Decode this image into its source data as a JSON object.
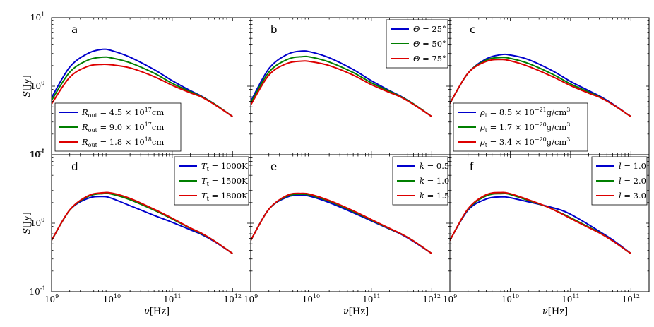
{
  "figure": {
    "ylabel_main": "S",
    "ylabel_unit": "[Jy]",
    "xlabel_main": "ν",
    "xlabel_unit": "[Hz]"
  },
  "axes": {
    "x_ticks": [
      {
        "base": "10",
        "exp": "9"
      },
      {
        "base": "10",
        "exp": "10"
      },
      {
        "base": "10",
        "exp": "11"
      },
      {
        "base": "10",
        "exp": "12"
      }
    ],
    "y_ticks": [
      {
        "base": "10",
        "exp": "-1"
      },
      {
        "base": "10",
        "exp": "0"
      },
      {
        "base": "10",
        "exp": "1"
      }
    ]
  },
  "colors": {
    "blue": "#0000cc",
    "green": "#007f00",
    "red": "#dd0000"
  },
  "chart_data": [
    {
      "type": "line",
      "panel": "a",
      "xscale": "log",
      "yscale": "log",
      "xlim": [
        1000000000.0,
        2000000000000.0
      ],
      "ylim": [
        0.1,
        10
      ],
      "legend_loc": "lower-left",
      "series": [
        {
          "name": "R_out = 4.5 × 10^17 cm",
          "label_sym": "R",
          "label_sub": "out",
          "label_rest": " = 4.5 × 10",
          "label_sup": "17",
          "label_unit": "cm",
          "color": "#0000cc",
          "x": [
            1000000000.0,
            2000000000.0,
            4000000000.0,
            7000000000.0,
            10000000000.0,
            20000000000.0,
            50000000000.0,
            100000000000.0,
            200000000000.0,
            300000000000.0,
            500000000000.0,
            1000000000000.0
          ],
          "y": [
            0.68,
            1.9,
            3.0,
            3.45,
            3.3,
            2.65,
            1.75,
            1.2,
            0.86,
            0.72,
            0.55,
            0.36
          ]
        },
        {
          "name": "R_out = 9.0 × 10^17 cm",
          "label_sym": "R",
          "label_sub": "out",
          "label_rest": " = 9.0 × 10",
          "label_sup": "17",
          "label_unit": "cm",
          "color": "#007f00",
          "x": [
            1000000000.0,
            2000000000.0,
            4000000000.0,
            7000000000.0,
            10000000000.0,
            20000000000.0,
            50000000000.0,
            100000000000.0,
            200000000000.0,
            300000000000.0,
            500000000000.0,
            1000000000000.0
          ],
          "y": [
            0.62,
            1.6,
            2.4,
            2.65,
            2.58,
            2.2,
            1.55,
            1.1,
            0.83,
            0.71,
            0.55,
            0.36
          ]
        },
        {
          "name": "R_out = 1.8 × 10^18 cm",
          "label_sym": "R",
          "label_sub": "out",
          "label_rest": " = 1.8 × 10",
          "label_sup": "18",
          "label_unit": "cm",
          "color": "#dd0000",
          "x": [
            1000000000.0,
            2000000000.0,
            4000000000.0,
            7000000000.0,
            10000000000.0,
            20000000000.0,
            50000000000.0,
            100000000000.0,
            200000000000.0,
            300000000000.0,
            500000000000.0,
            1000000000000.0
          ],
          "y": [
            0.55,
            1.35,
            1.95,
            2.08,
            2.05,
            1.85,
            1.38,
            1.03,
            0.8,
            0.7,
            0.54,
            0.36
          ]
        }
      ]
    },
    {
      "type": "line",
      "panel": "b",
      "xscale": "log",
      "yscale": "log",
      "xlim": [
        1000000000.0,
        2000000000000.0
      ],
      "ylim": [
        0.1,
        10
      ],
      "legend_loc": "upper-right",
      "series": [
        {
          "name": "Θ = 25°",
          "label_sym": "Θ",
          "label_rest": " = 25°",
          "color": "#0000cc",
          "x": [
            1000000000.0,
            2000000000.0,
            4000000000.0,
            7000000000.0,
            10000000000.0,
            20000000000.0,
            50000000000.0,
            100000000000.0,
            200000000000.0,
            300000000000.0,
            500000000000.0,
            1000000000000.0
          ],
          "y": [
            0.6,
            1.8,
            2.9,
            3.25,
            3.15,
            2.6,
            1.75,
            1.2,
            0.86,
            0.72,
            0.55,
            0.36
          ]
        },
        {
          "name": "Θ = 50°",
          "label_sym": "Θ",
          "label_rest": " = 50°",
          "color": "#007f00",
          "x": [
            1000000000.0,
            2000000000.0,
            4000000000.0,
            7000000000.0,
            10000000000.0,
            20000000000.0,
            50000000000.0,
            100000000000.0,
            200000000000.0,
            300000000000.0,
            500000000000.0,
            1000000000000.0
          ],
          "y": [
            0.57,
            1.6,
            2.45,
            2.7,
            2.65,
            2.25,
            1.58,
            1.12,
            0.84,
            0.71,
            0.55,
            0.36
          ]
        },
        {
          "name": "Θ = 75°",
          "label_sym": "Θ",
          "label_rest": " = 75°",
          "color": "#dd0000",
          "x": [
            1000000000.0,
            2000000000.0,
            4000000000.0,
            7000000000.0,
            10000000000.0,
            20000000000.0,
            50000000000.0,
            100000000000.0,
            200000000000.0,
            300000000000.0,
            500000000000.0,
            1000000000000.0
          ],
          "y": [
            0.53,
            1.45,
            2.15,
            2.32,
            2.28,
            2.0,
            1.45,
            1.05,
            0.81,
            0.7,
            0.54,
            0.36
          ]
        }
      ]
    },
    {
      "type": "line",
      "panel": "c",
      "xscale": "log",
      "yscale": "log",
      "xlim": [
        1000000000.0,
        2000000000000.0
      ],
      "ylim": [
        0.1,
        10
      ],
      "legend_loc": "lower-left",
      "series": [
        {
          "name": "ρ_t = 8.5 × 10^-21 g/cm^3",
          "label_sym": "ρ",
          "label_sub": "t",
          "label_rest": " = 8.5 × 10",
          "label_sup": "−21",
          "label_unit": "g/cm",
          "label_sup2": "3",
          "color": "#0000cc",
          "x": [
            1000000000.0,
            2000000000.0,
            4000000000.0,
            7000000000.0,
            10000000000.0,
            20000000000.0,
            50000000000.0,
            100000000000.0,
            200000000000.0,
            300000000000.0,
            500000000000.0,
            1000000000000.0
          ],
          "y": [
            0.56,
            1.55,
            2.5,
            2.88,
            2.85,
            2.45,
            1.68,
            1.17,
            0.86,
            0.72,
            0.55,
            0.36
          ]
        },
        {
          "name": "ρ_t = 1.7 × 10^-20 g/cm^3",
          "label_sym": "ρ",
          "label_sub": "t",
          "label_rest": " = 1.7 × 10",
          "label_sup": "−20",
          "label_unit": "g/cm",
          "label_sup2": "3",
          "color": "#007f00",
          "x": [
            1000000000.0,
            2000000000.0,
            4000000000.0,
            7000000000.0,
            10000000000.0,
            20000000000.0,
            50000000000.0,
            100000000000.0,
            200000000000.0,
            300000000000.0,
            500000000000.0,
            1000000000000.0
          ],
          "y": [
            0.56,
            1.55,
            2.4,
            2.62,
            2.55,
            2.15,
            1.5,
            1.08,
            0.82,
            0.7,
            0.54,
            0.36
          ]
        },
        {
          "name": "ρ_t = 3.4 × 10^-20 g/cm^3",
          "label_sym": "ρ",
          "label_sub": "t",
          "label_rest": " = 3.4 × 10",
          "label_sup": "−20",
          "label_unit": "g/cm",
          "label_sup2": "3",
          "color": "#dd0000",
          "x": [
            1000000000.0,
            2000000000.0,
            4000000000.0,
            7000000000.0,
            10000000000.0,
            20000000000.0,
            50000000000.0,
            100000000000.0,
            200000000000.0,
            300000000000.0,
            500000000000.0,
            1000000000000.0
          ],
          "y": [
            0.56,
            1.55,
            2.3,
            2.45,
            2.35,
            1.95,
            1.38,
            1.02,
            0.79,
            0.69,
            0.54,
            0.36
          ]
        }
      ]
    },
    {
      "type": "line",
      "panel": "d",
      "xscale": "log",
      "yscale": "log",
      "xlim": [
        1000000000.0,
        2000000000000.0
      ],
      "ylim": [
        0.1,
        10
      ],
      "legend_loc": "upper-right",
      "series": [
        {
          "name": "T_t = 1000K",
          "label_sym": "T",
          "label_sub": "t",
          "label_rest": " = 1000K",
          "color": "#0000cc",
          "x": [
            1000000000.0,
            2000000000.0,
            4000000000.0,
            7000000000.0,
            10000000000.0,
            20000000000.0,
            50000000000.0,
            100000000000.0,
            200000000000.0,
            300000000000.0,
            500000000000.0,
            1000000000000.0
          ],
          "y": [
            0.56,
            1.55,
            2.3,
            2.45,
            2.3,
            1.8,
            1.3,
            1.03,
            0.8,
            0.69,
            0.54,
            0.36
          ]
        },
        {
          "name": "T_t = 1500K",
          "label_sym": "T",
          "label_sub": "t",
          "label_rest": " = 1500K",
          "color": "#007f00",
          "x": [
            1000000000.0,
            2000000000.0,
            4000000000.0,
            7000000000.0,
            10000000000.0,
            20000000000.0,
            50000000000.0,
            100000000000.0,
            200000000000.0,
            300000000000.0,
            500000000000.0,
            1000000000000.0
          ],
          "y": [
            0.56,
            1.55,
            2.45,
            2.7,
            2.65,
            2.2,
            1.55,
            1.15,
            0.84,
            0.71,
            0.55,
            0.36
          ]
        },
        {
          "name": "T_t = 1800K",
          "label_sym": "T",
          "label_sub": "t",
          "label_rest": " = 1800K",
          "color": "#dd0000",
          "x": [
            1000000000.0,
            2000000000.0,
            4000000000.0,
            7000000000.0,
            10000000000.0,
            20000000000.0,
            50000000000.0,
            100000000000.0,
            200000000000.0,
            300000000000.0,
            500000000000.0,
            1000000000000.0
          ],
          "y": [
            0.56,
            1.56,
            2.5,
            2.78,
            2.75,
            2.3,
            1.6,
            1.18,
            0.85,
            0.72,
            0.55,
            0.36
          ]
        }
      ]
    },
    {
      "type": "line",
      "panel": "e",
      "xscale": "log",
      "yscale": "log",
      "xlim": [
        1000000000.0,
        2000000000000.0
      ],
      "ylim": [
        0.1,
        10
      ],
      "legend_loc": "upper-right",
      "series": [
        {
          "name": "k = 0.5",
          "label_sym": "k",
          "label_rest": " = 0.5",
          "color": "#0000cc",
          "x": [
            1000000000.0,
            2000000000.0,
            4000000000.0,
            7000000000.0,
            10000000000.0,
            20000000000.0,
            50000000000.0,
            100000000000.0,
            200000000000.0,
            300000000000.0,
            500000000000.0,
            1000000000000.0
          ],
          "y": [
            0.56,
            1.6,
            2.4,
            2.55,
            2.45,
            2.0,
            1.42,
            1.08,
            0.82,
            0.7,
            0.54,
            0.36
          ]
        },
        {
          "name": "k = 1.0",
          "label_sym": "k",
          "label_rest": " = 1.0",
          "color": "#007f00",
          "x": [
            1000000000.0,
            2000000000.0,
            4000000000.0,
            7000000000.0,
            10000000000.0,
            20000000000.0,
            50000000000.0,
            100000000000.0,
            200000000000.0,
            300000000000.0,
            500000000000.0,
            1000000000000.0
          ],
          "y": [
            0.56,
            1.6,
            2.48,
            2.65,
            2.55,
            2.1,
            1.48,
            1.11,
            0.83,
            0.71,
            0.55,
            0.36
          ]
        },
        {
          "name": "k = 1.5",
          "label_sym": "k",
          "label_rest": " = 1.5",
          "color": "#dd0000",
          "x": [
            1000000000.0,
            2000000000.0,
            4000000000.0,
            7000000000.0,
            10000000000.0,
            20000000000.0,
            50000000000.0,
            100000000000.0,
            200000000000.0,
            300000000000.0,
            500000000000.0,
            1000000000000.0
          ],
          "y": [
            0.56,
            1.6,
            2.55,
            2.72,
            2.62,
            2.15,
            1.52,
            1.13,
            0.84,
            0.71,
            0.55,
            0.36
          ]
        }
      ]
    },
    {
      "type": "line",
      "panel": "f",
      "xscale": "log",
      "yscale": "log",
      "xlim": [
        1000000000.0,
        2000000000000.0
      ],
      "ylim": [
        0.1,
        10
      ],
      "legend_loc": "upper-right",
      "series": [
        {
          "name": "l = 1.0",
          "label_sym": "l",
          "label_rest": " = 1.0",
          "color": "#0000cc",
          "x": [
            1000000000.0,
            2000000000.0,
            4000000000.0,
            7000000000.0,
            10000000000.0,
            20000000000.0,
            40000000000.0,
            70000000000.0,
            100000000000.0,
            200000000000.0,
            300000000000.0,
            500000000000.0,
            1000000000000.0
          ],
          "y": [
            0.56,
            1.55,
            2.25,
            2.42,
            2.35,
            2.05,
            1.78,
            1.55,
            1.35,
            0.95,
            0.76,
            0.57,
            0.36
          ]
        },
        {
          "name": "l = 2.0",
          "label_sym": "l",
          "label_rest": " = 2.0",
          "color": "#007f00",
          "x": [
            1000000000.0,
            2000000000.0,
            4000000000.0,
            7000000000.0,
            10000000000.0,
            20000000000.0,
            40000000000.0,
            70000000000.0,
            100000000000.0,
            200000000000.0,
            300000000000.0,
            500000000000.0,
            1000000000000.0
          ],
          "y": [
            0.56,
            1.6,
            2.5,
            2.7,
            2.62,
            2.15,
            1.75,
            1.4,
            1.2,
            0.88,
            0.73,
            0.55,
            0.36
          ]
        },
        {
          "name": "l = 3.0",
          "label_sym": "l",
          "label_rest": " = 3.0",
          "color": "#dd0000",
          "x": [
            1000000000.0,
            2000000000.0,
            4000000000.0,
            7000000000.0,
            10000000000.0,
            20000000000.0,
            40000000000.0,
            70000000000.0,
            100000000000.0,
            200000000000.0,
            300000000000.0,
            500000000000.0,
            1000000000000.0
          ],
          "y": [
            0.56,
            1.62,
            2.6,
            2.8,
            2.7,
            2.2,
            1.75,
            1.38,
            1.17,
            0.86,
            0.72,
            0.55,
            0.36
          ]
        }
      ]
    }
  ]
}
